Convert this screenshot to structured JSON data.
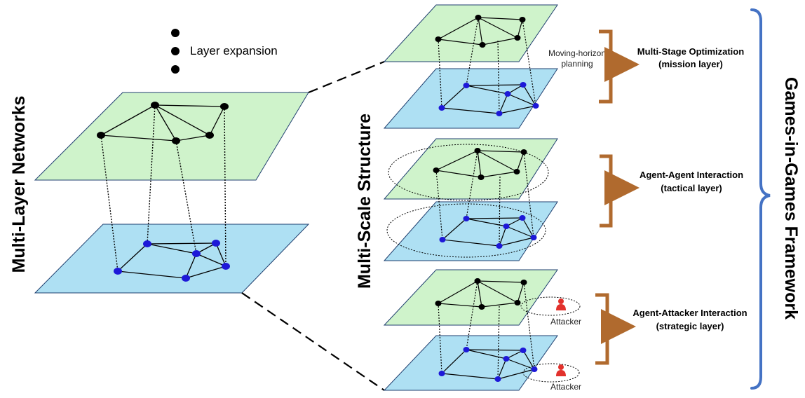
{
  "title_left": "Multi-Layer Networks",
  "title_middle": "Multi-Scale Structure",
  "title_right": "Games-in-Games Framework",
  "bullet_label": "Layer expansion",
  "moving_horizon_line1": "Moving-horizon",
  "moving_horizon_line2": "planning",
  "layers": [
    {
      "title": "Multi-Stage Optimization",
      "subtitle": "(mission layer)"
    },
    {
      "title": "Agent-Agent Interaction",
      "subtitle": "(tactical layer)"
    },
    {
      "title": "Agent-Attacker Interaction",
      "subtitle": "(strategic layer)"
    }
  ],
  "attacker_label": "Attacker",
  "colors": {
    "green_plane": "#cff3cb",
    "blue_plane": "#aee0f3",
    "plane_stroke": "#1f3f6f",
    "blue_node": "#1d18d8",
    "black_node": "#000000",
    "arrow": "#b06a2e",
    "brace": "#4472c4",
    "attacker": "#e2312c"
  }
}
